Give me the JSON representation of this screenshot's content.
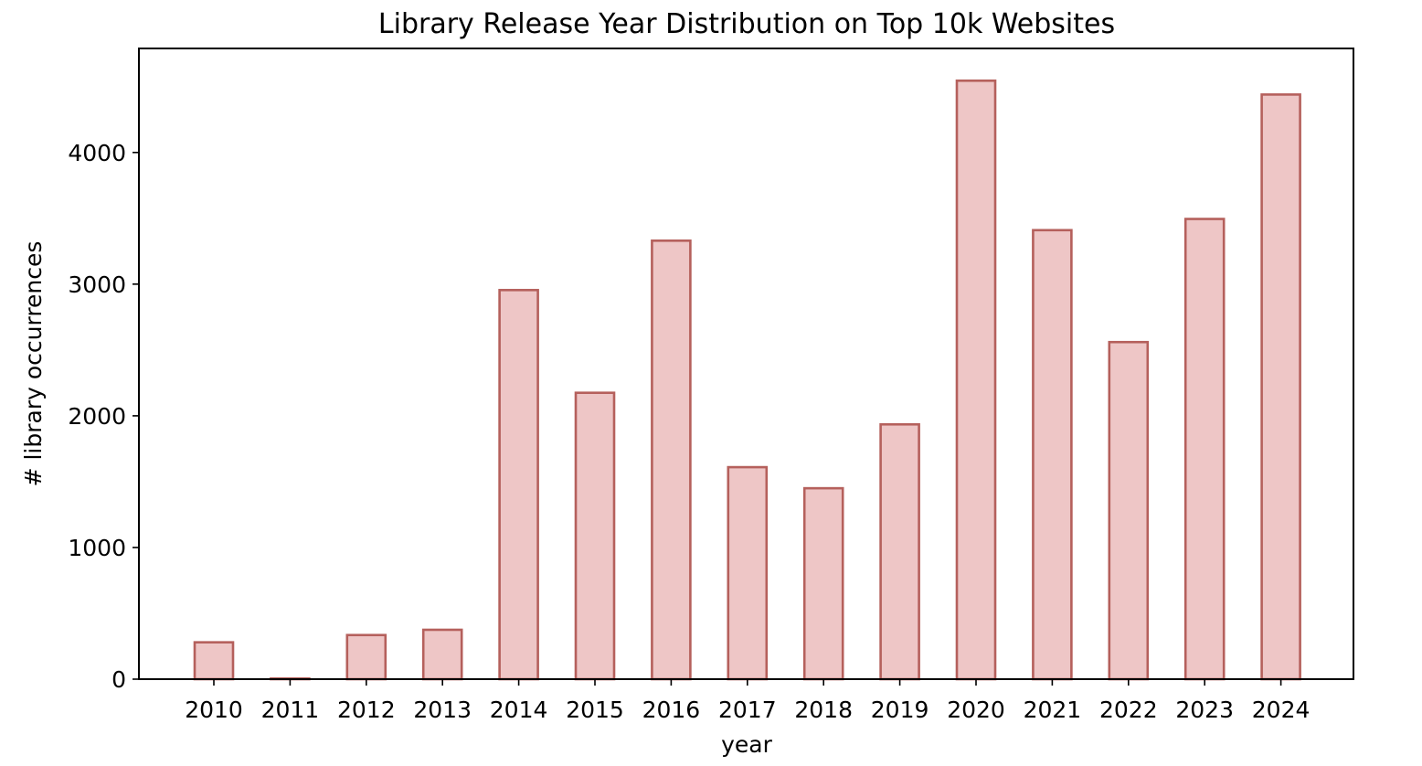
{
  "chart_data": {
    "type": "bar",
    "title": "Library Release Year Distribution on Top 10k Websites",
    "xlabel": "year",
    "ylabel": "# library occurrences",
    "categories": [
      "2010",
      "2011",
      "2012",
      "2013",
      "2014",
      "2015",
      "2016",
      "2017",
      "2018",
      "2019",
      "2020",
      "2021",
      "2022",
      "2023",
      "2024"
    ],
    "values": [
      280,
      5,
      335,
      375,
      2955,
      2175,
      3330,
      1610,
      1450,
      1935,
      4545,
      3410,
      2560,
      3495,
      4440
    ],
    "ylim": [
      0,
      4790
    ],
    "yticks": [
      0,
      1000,
      2000,
      3000,
      4000
    ],
    "grid": false,
    "legend": "none",
    "colors": {
      "bar_fill": "#eec6c6",
      "bar_edge": "#b5605c",
      "axes": "#000000"
    }
  }
}
